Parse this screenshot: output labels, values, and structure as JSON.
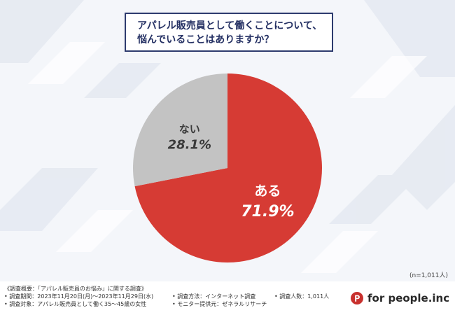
{
  "title": {
    "line1": "アパレル販売員として働くことについて、",
    "line2": "悩んでいることはありますか？"
  },
  "chart_data": {
    "type": "pie",
    "title": "アパレル販売員として働くことについて、悩んでいることはありますか？",
    "slices": [
      {
        "label": "ある",
        "value": 71.9,
        "value_label": "71.9%",
        "color": "#d63b34"
      },
      {
        "label": "ない",
        "value": 28.1,
        "value_label": "28.1%",
        "color": "#c3c3c3"
      }
    ],
    "start_angle_deg": 0,
    "direction": "clockwise",
    "legend": "none",
    "labels_inside": true
  },
  "sample_size": "(n=1,011人)",
  "survey": {
    "heading": "《調査概要：「アパレル販売員のお悩み」に関する調査》",
    "period": "• 調査期間：2023年11月20日(月)〜2023年11月29日(水)",
    "target": "• 調査対象：アパレル販売員として働く35〜45歳の女性",
    "method": "• 調査方法：インターネット調査",
    "provider": "• モニター提供元：ゼネラルリサーチ",
    "count": "• 調査人数：1,011人"
  },
  "logo": {
    "text": "for people.inc",
    "icon": "p-circle-logo-icon",
    "color": "#c8312e"
  }
}
